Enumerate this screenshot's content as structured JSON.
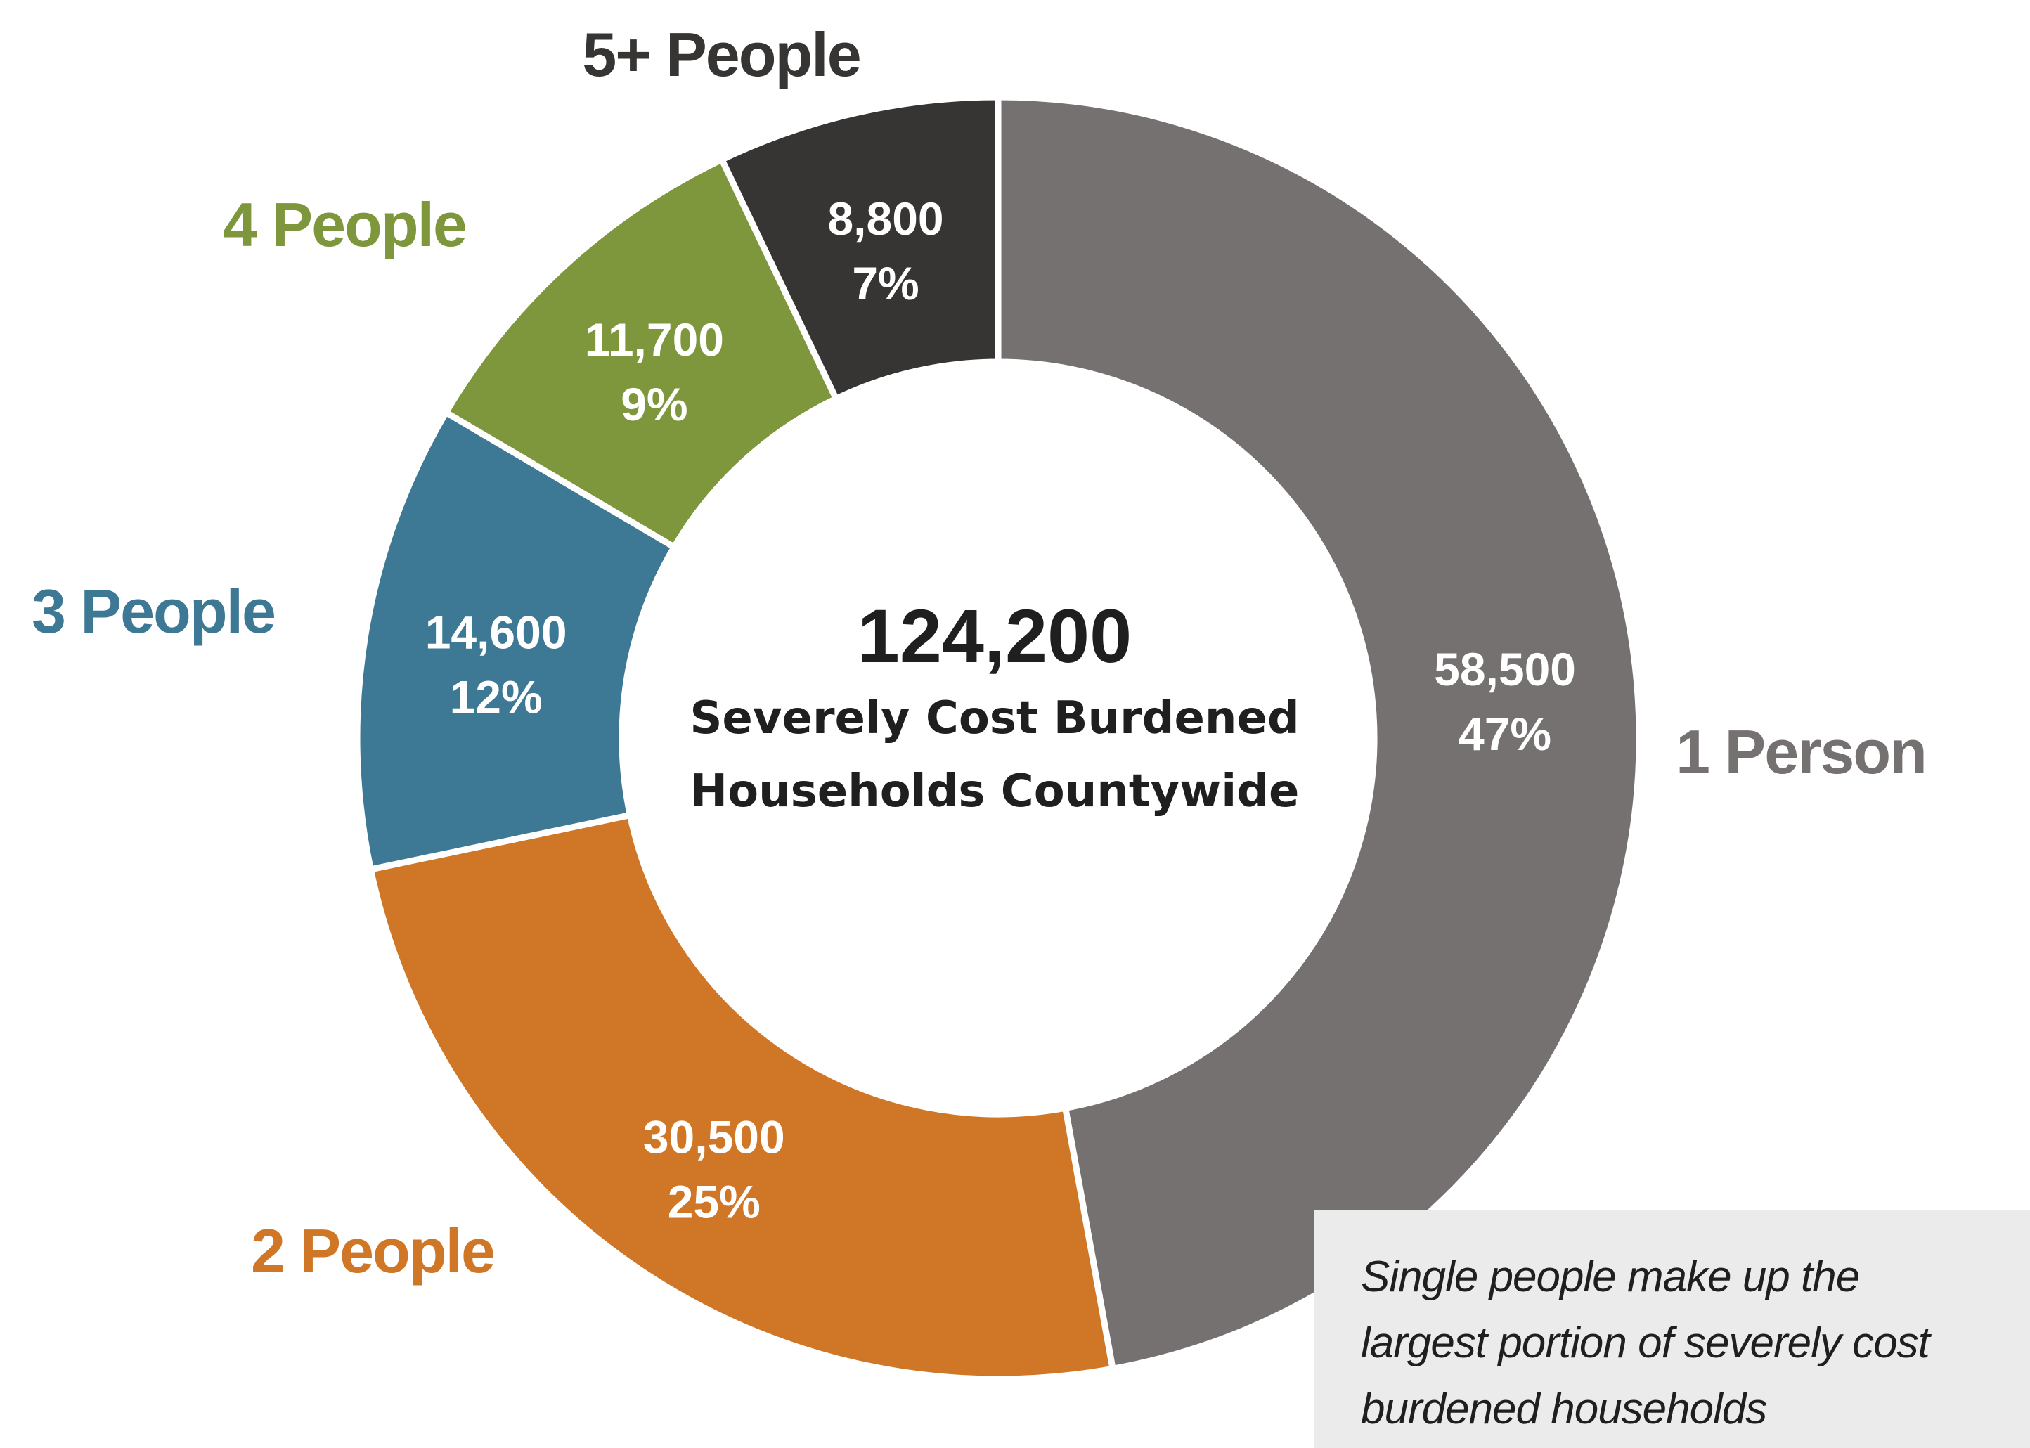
{
  "chart_data": {
    "type": "pie",
    "style": "donut",
    "total": "124,200",
    "center_lines": [
      "Severely Cost Burdened",
      "Households Countywide"
    ],
    "categories": [
      "1 Person",
      "2 People",
      "3 People",
      "4 People",
      "5+ People"
    ],
    "values": [
      58500,
      30500,
      14600,
      11700,
      8800
    ],
    "value_labels": [
      "58,500",
      "30,500",
      "14,600",
      "11,700",
      "8,800"
    ],
    "percent_labels": [
      "47%",
      "25%",
      "12%",
      "9%",
      "7%"
    ],
    "colors": [
      "#767171",
      "#d07627",
      "#3d7894",
      "#7f973c",
      "#363533"
    ],
    "direction": "clockwise from top"
  },
  "note": {
    "lines": [
      "Single people make up the",
      "largest portion of severely cost",
      "burdened households"
    ]
  }
}
